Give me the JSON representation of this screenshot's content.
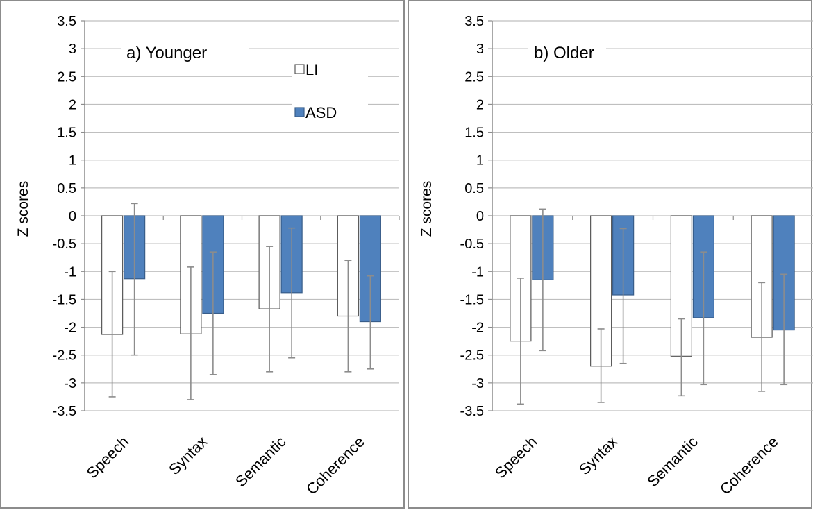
{
  "chart_data": [
    {
      "type": "bar",
      "title": "a) Younger",
      "ylabel": "Z scores",
      "ylim": [
        -3.5,
        3.5
      ],
      "ytick_step": 0.5,
      "grid": true,
      "legend": "top-right",
      "categories": [
        "Speech",
        "Syntax",
        "Semantic",
        "Coherence"
      ],
      "series": [
        {
          "name": "LI",
          "color": "#ffffff",
          "values": [
            -2.13,
            -2.12,
            -1.67,
            -1.8
          ],
          "err_low": [
            -3.25,
            -3.3,
            -2.8,
            -2.8
          ],
          "err_high": [
            -1.0,
            -0.92,
            -0.55,
            -0.8
          ]
        },
        {
          "name": "ASD",
          "color": "#4f81bd",
          "values": [
            -1.13,
            -1.75,
            -1.38,
            -1.9
          ],
          "err_low": [
            -2.5,
            -2.85,
            -2.55,
            -2.75
          ],
          "err_high": [
            0.22,
            -0.65,
            -0.22,
            -1.08
          ]
        }
      ]
    },
    {
      "type": "bar",
      "title": "b) Older",
      "ylabel": "Z scores",
      "ylim": [
        -3.5,
        3.5
      ],
      "ytick_step": 0.5,
      "grid": true,
      "categories": [
        "Speech",
        "Syntax",
        "Semantic",
        "Coherence"
      ],
      "series": [
        {
          "name": "LI",
          "color": "#ffffff",
          "values": [
            -2.25,
            -2.7,
            -2.52,
            -2.18
          ],
          "err_low": [
            -3.38,
            -3.35,
            -3.23,
            -3.15
          ],
          "err_high": [
            -1.12,
            -2.03,
            -1.85,
            -1.2
          ]
        },
        {
          "name": "ASD",
          "color": "#4f81bd",
          "values": [
            -1.15,
            -1.42,
            -1.83,
            -2.05
          ],
          "err_low": [
            -2.42,
            -2.65,
            -3.03,
            -3.03
          ],
          "err_high": [
            0.12,
            -0.23,
            -0.65,
            -1.05
          ]
        }
      ]
    }
  ]
}
